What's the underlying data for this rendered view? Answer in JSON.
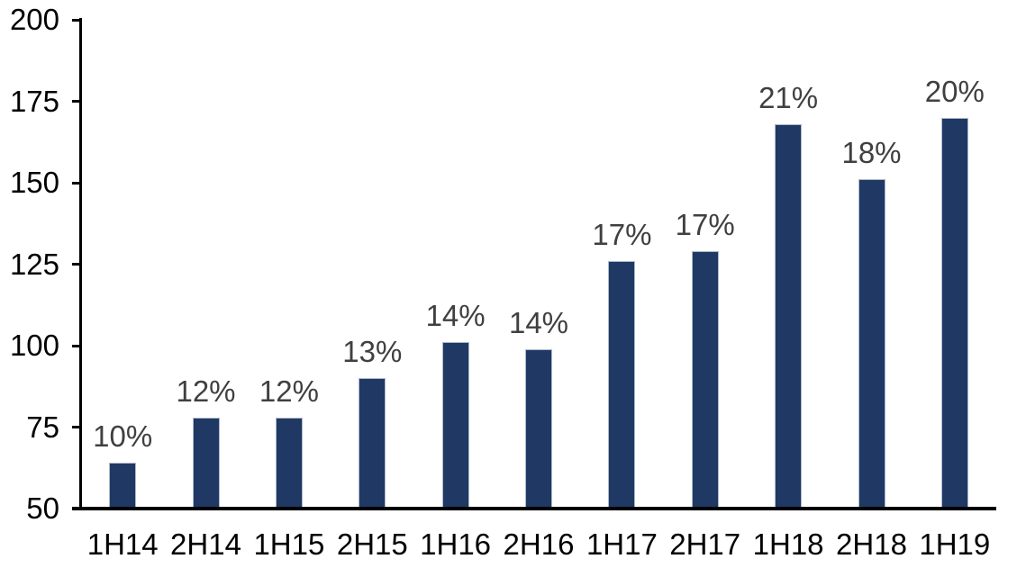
{
  "chart_data": {
    "type": "bar",
    "categories": [
      "1H14",
      "2H14",
      "1H15",
      "2H15",
      "1H16",
      "2H16",
      "1H17",
      "2H17",
      "1H18",
      "2H18",
      "1H19"
    ],
    "values": [
      64,
      78,
      78,
      90,
      101,
      99,
      126,
      129,
      168,
      151,
      170
    ],
    "bar_labels": [
      "10%",
      "12%",
      "12%",
      "13%",
      "14%",
      "14%",
      "17%",
      "17%",
      "21%",
      "18%",
      "20%"
    ],
    "title": "",
    "xlabel": "",
    "ylabel": "",
    "ylim": [
      50,
      200
    ],
    "yticks": [
      50,
      75,
      100,
      125,
      150,
      175,
      200
    ],
    "grid": false,
    "legend": false,
    "colors": {
      "bar_fill": "#1F3864",
      "bar_border": "#AEBACA",
      "axis": "#000000",
      "tick_label": "#000000",
      "data_label": "#404040"
    }
  }
}
